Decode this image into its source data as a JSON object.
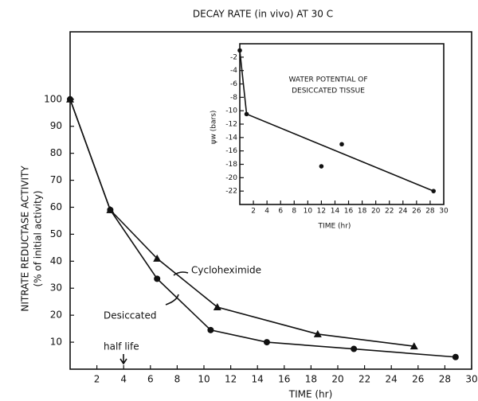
{
  "chart_data": [
    {
      "type": "line",
      "title": "DECAY RATE (in vivo) AT 30 C",
      "y_label": "NITRATE REDUCTASE ACTIVITY",
      "y_sublabel": "(% of initial activity)",
      "x_label": "TIME (hr)",
      "xlim": [
        0,
        30
      ],
      "ylim": [
        0,
        125
      ],
      "xticks": [
        2,
        4,
        6,
        8,
        10,
        12,
        14,
        16,
        18,
        20,
        22,
        24,
        26,
        28,
        30
      ],
      "yticks": [
        10,
        20,
        30,
        40,
        50,
        60,
        70,
        80,
        90,
        100
      ],
      "annotations": [
        "Cycloheximide",
        "Desiccated",
        "half life"
      ],
      "series": [
        {
          "marker": "triangle",
          "color": "#111111",
          "x": [
            0,
            3,
            6.5,
            11,
            18.5,
            25.7
          ],
          "y": [
            100,
            59,
            41,
            23,
            13,
            8.5
          ]
        },
        {
          "marker": "circle",
          "color": "#111111",
          "x": [
            0,
            3,
            6.5,
            10.5,
            14.7,
            21.2,
            28.8
          ],
          "y": [
            100,
            59,
            33.5,
            14.5,
            10,
            7.5,
            4.5
          ]
        }
      ]
    },
    {
      "type": "scatter",
      "title": [
        "WATER POTENTIAL OF",
        "DESICCATED TISSUE"
      ],
      "y_label": "ψw (bars)",
      "x_label": "TIME (hr)",
      "xlim": [
        0,
        30
      ],
      "ylim": [
        -24,
        0
      ],
      "xticks": [
        2,
        4,
        6,
        8,
        10,
        12,
        14,
        16,
        18,
        20,
        22,
        24,
        26,
        28,
        30
      ],
      "yticks": [
        -2,
        -4,
        -6,
        -8,
        -10,
        -12,
        -14,
        -16,
        -18,
        -20,
        -22
      ],
      "color": "#111111",
      "points": {
        "x": [
          0,
          1,
          12,
          15,
          28.5
        ],
        "y": [
          -1,
          -10.5,
          -18.3,
          -15,
          -22
        ]
      },
      "line": {
        "x": [
          0,
          1,
          28.5
        ],
        "y": [
          -1,
          -10.5,
          -22
        ]
      }
    }
  ]
}
